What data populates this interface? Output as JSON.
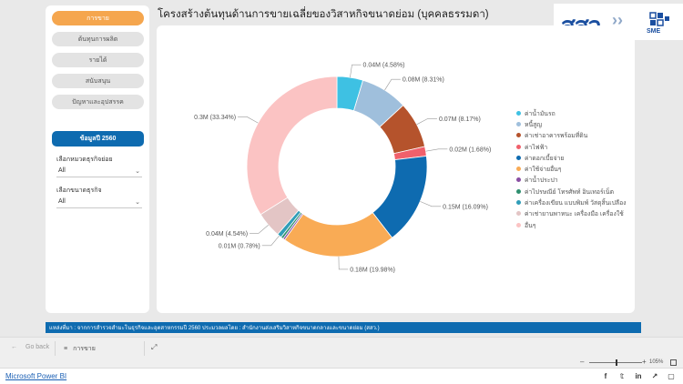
{
  "nav": {
    "items": [
      {
        "label": "การขาย",
        "active": true
      },
      {
        "label": "ต้นทุนการผลิต",
        "active": false
      },
      {
        "label": "รายได้",
        "active": false
      },
      {
        "label": "สนับสนุน",
        "active": false
      },
      {
        "label": "ปัญหาและอุปสรรค",
        "active": false
      }
    ]
  },
  "year_label": "ข้อมูลปี 2560",
  "filters": {
    "business_type": {
      "label": "เลือกหมวดธุรกิจย่อย",
      "value": "All"
    },
    "business_size": {
      "label": "เลือกขนาดธุรกิจ",
      "value": "All"
    }
  },
  "title": "โครงสร้างต้นทุนด้านการขายเฉลี่ยของวิสาหกิจขนาดย่อม (บุคคลธรรมดา)",
  "logos": {
    "osmep_text": "สสว",
    "sme_text": "SME"
  },
  "chart_data": {
    "type": "pie",
    "donut": true,
    "slices": [
      {
        "name": "ค่าน้ำมันรถ",
        "value": 0.04,
        "label": "0.04M (4.58%)",
        "percent": 4.58,
        "color": "#3ec1e3"
      },
      {
        "name": "หนี้สูญ",
        "value": 0.08,
        "label": "0.08M (8.31%)",
        "percent": 8.31,
        "color": "#9fbfdc"
      },
      {
        "name": "ค่าเช่าอาคารพร้อมที่ดิน",
        "value": 0.07,
        "label": "0.07M (8.17%)",
        "percent": 8.17,
        "color": "#b5532c"
      },
      {
        "name": "ค่าไฟฟ้า",
        "value": 0.02,
        "label": "0.02M (1.68%)",
        "percent": 1.68,
        "color": "#f0606b"
      },
      {
        "name": "ค่าดอกเบี้ยจ่าย",
        "value": 0.15,
        "label": "0.15M (16.09%)",
        "percent": 16.09,
        "color": "#0e6bb0"
      },
      {
        "name": "ค่าใช้จ่ายอื่นๆ",
        "value": 0.18,
        "label": "0.18M (19.98%)",
        "percent": 19.98,
        "color": "#f9ab55"
      },
      {
        "name": "ค่าน้ำประปา",
        "value": 0.0,
        "label": "",
        "percent": 0.35,
        "color": "#8a4ea3"
      },
      {
        "name": "ค่าไปรษณีย์ โทรศัพท์ อินเทอร์เน็ต",
        "value": 0.0,
        "label": "",
        "percent": 0.43,
        "color": "#2f8f6f"
      },
      {
        "name": "ค่าเครื่องเขียน แบบพิมพ์ วัสดุสิ้นเปลือง",
        "value": 0.01,
        "label": "0.01M (0.78%)",
        "percent": 0.78,
        "color": "#2f9db8"
      },
      {
        "name": "ค่าเช่ายานพาหนะ เครื่องมือ เครื่องใช้",
        "value": 0.04,
        "label": "0.04M (4.54%)",
        "percent": 4.54,
        "color": "#e3c5c5"
      },
      {
        "name": "อื่นๆ",
        "value": 0.3,
        "label": "0.3M (33.34%)",
        "percent": 33.34,
        "color": "#fbc3c3"
      }
    ]
  },
  "source_text": "แหล่งที่มา : จากการสำรวจสำมะโนธุรกิจและอุตสาหกรรมปี 2560 ประมวลผลโดย : สำนักงานส่งเสริมวิสาหกิจขนาดกลางและขนาดย่อม (สสว.)",
  "pagebar": {
    "go_back": "Go back",
    "current_page": "การขาย"
  },
  "zoom": {
    "level": "105%",
    "fraction": 0.5
  },
  "footer": {
    "link": "Microsoft Power BI"
  },
  "share_icons": [
    "facebook-icon",
    "twitter-icon",
    "linkedin-icon",
    "share-icon",
    "fullscreen-icon"
  ]
}
